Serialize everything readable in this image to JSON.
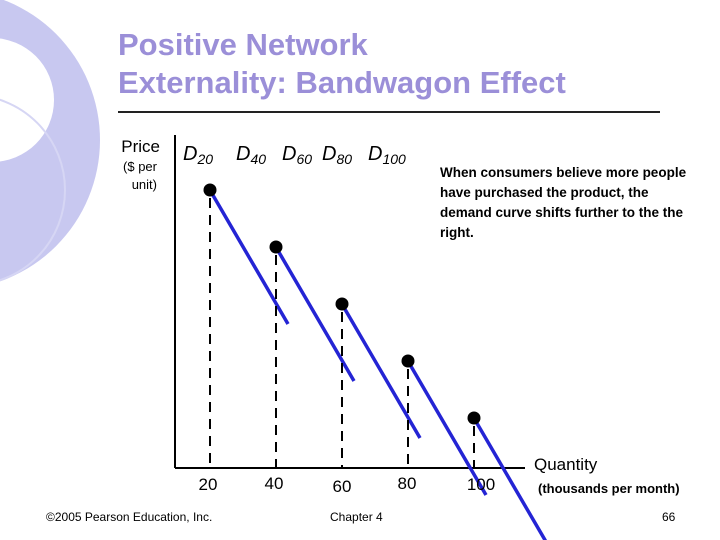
{
  "title": {
    "line1": "Positive Network",
    "line2": "Externality: Bandwagon Effect"
  },
  "colors": {
    "title": "#9b8fd8",
    "curve": "#2424d4",
    "decor": "#c8c8f0"
  },
  "note": "When consumers believe more people have purchased the product, the demand curve shifts further to the the right.",
  "footer": {
    "copyright": "©2005 Pearson Education, Inc.",
    "chapter": "Chapter 4",
    "page": "66"
  },
  "chart_data": {
    "type": "line",
    "title": "Positive Network Externality: Bandwagon Effect",
    "ylabel": "Price",
    "ylabel_unit": "($ per unit)",
    "xlabel": "Quantity",
    "xlabel_unit": "(thousands per month)",
    "x_ticks": [
      "20",
      "40",
      "60",
      "80",
      "100"
    ],
    "series": [
      {
        "name": "D20",
        "base": "D",
        "sub": "20",
        "point": {
          "quantity": 20,
          "price_rank": 5
        }
      },
      {
        "name": "D40",
        "base": "D",
        "sub": "40",
        "point": {
          "quantity": 40,
          "price_rank": 4
        }
      },
      {
        "name": "D60",
        "base": "D",
        "sub": "60",
        "point": {
          "quantity": 60,
          "price_rank": 3
        }
      },
      {
        "name": "D80",
        "base": "D",
        "sub": "80",
        "point": {
          "quantity": 80,
          "price_rank": 2
        }
      },
      {
        "name": "D100",
        "base": "D",
        "sub": "100",
        "point": {
          "quantity": 100,
          "price_rank": 1
        }
      }
    ]
  }
}
